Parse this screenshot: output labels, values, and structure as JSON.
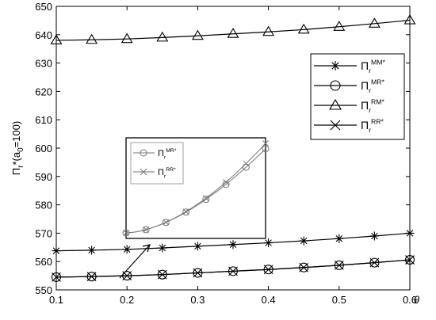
{
  "chart_data": {
    "type": "line",
    "title": "",
    "xlabel": "θ",
    "ylabel": "Π",
    "ylabel_sub": "r",
    "ylabel_tail": "*(a",
    "ylabel_sub2": "0",
    "ylabel_end": "=100)",
    "xlim": [
      0.1,
      0.6
    ],
    "ylim": [
      550,
      650
    ],
    "x_ticks": [
      0.1,
      0.2,
      0.3,
      0.4,
      0.5,
      0.6
    ],
    "x_tick_labels": [
      "0.1",
      "0.2",
      "0.3",
      "0.4",
      "0.5",
      "0.6"
    ],
    "y_ticks": [
      550,
      560,
      570,
      580,
      590,
      600,
      610,
      620,
      630,
      640,
      650
    ],
    "y_tick_labels": [
      "550",
      "560",
      "570",
      "580",
      "590",
      "600",
      "610",
      "620",
      "630",
      "640",
      "650"
    ],
    "grid": false,
    "legend_position": "top-right",
    "x": [
      0.1,
      0.15,
      0.2,
      0.25,
      0.3,
      0.35,
      0.4,
      0.45,
      0.5,
      0.55,
      0.6
    ],
    "series": [
      {
        "key": "MM",
        "marker": "star",
        "label_main": "Π",
        "label_sub": "r",
        "label_sup": "MM*",
        "values": [
          563.8,
          564.0,
          564.3,
          564.8,
          565.4,
          566.0,
          566.6,
          567.3,
          568.1,
          569.0,
          570.0
        ]
      },
      {
        "key": "MR",
        "marker": "circle",
        "label_main": "Π",
        "label_sub": "r",
        "label_sup": "MR*",
        "values": [
          554.5,
          554.7,
          555.0,
          555.4,
          556.0,
          556.6,
          557.2,
          557.9,
          558.7,
          559.6,
          560.6
        ]
      },
      {
        "key": "RM",
        "marker": "triangle",
        "label_main": "Π",
        "label_sub": "r",
        "label_sup": "RM*",
        "values": [
          638.0,
          638.2,
          638.5,
          639.0,
          639.6,
          640.3,
          641.0,
          641.8,
          642.8,
          643.9,
          645.1
        ]
      },
      {
        "key": "RR",
        "marker": "x",
        "label_main": "Π",
        "label_sub": "r",
        "label_sup": "RR*",
        "values": [
          554.5,
          554.7,
          555.0,
          555.4,
          556.0,
          556.6,
          557.2,
          557.9,
          558.7,
          559.6,
          560.6
        ]
      }
    ],
    "inset": {
      "legend": [
        {
          "marker": "circle",
          "label_main": "Π",
          "label_sub": "r",
          "label_sup": "MR*"
        },
        {
          "marker": "x",
          "label_main": "Π",
          "label_sub": "r",
          "label_sup": "RR*"
        }
      ]
    }
  }
}
